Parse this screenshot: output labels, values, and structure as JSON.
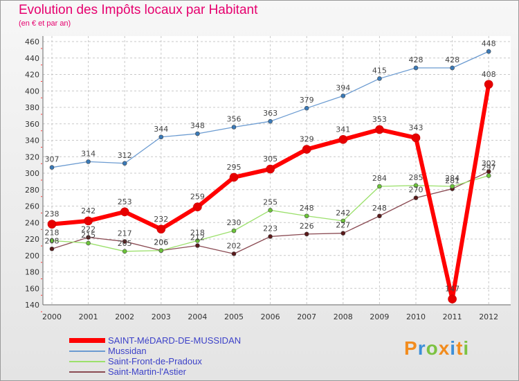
{
  "chart_data": {
    "type": "line",
    "title": "Evolution des Impôts locaux par Habitant",
    "subtitle": "(en € et par an)",
    "xlabel": "",
    "ylabel": "",
    "ylim": [
      140,
      460
    ],
    "yticks": [
      140,
      160,
      180,
      200,
      220,
      240,
      260,
      280,
      300,
      320,
      340,
      360,
      380,
      400,
      420,
      440,
      460
    ],
    "categories": [
      "2000",
      "2001",
      "2002",
      "2003",
      "2004",
      "2005",
      "2006",
      "2007",
      "2008",
      "2009",
      "2010",
      "2011",
      "2012"
    ],
    "legend_position": "bottom-left",
    "series": [
      {
        "name": "SAINT-MéDARD-DE-MUSSIDAN",
        "color": "#ff0000",
        "dot": "#e60000",
        "width": 6,
        "r": 6,
        "values": [
          238,
          242,
          253,
          232,
          259,
          295,
          305,
          329,
          341,
          353,
          343,
          147,
          408
        ]
      },
      {
        "name": "Mussidan",
        "color": "#6b9bd1",
        "dot": "#3a7ab8",
        "width": 1.3,
        "r": 3,
        "values": [
          307,
          314,
          312,
          344,
          348,
          356,
          363,
          379,
          394,
          415,
          428,
          428,
          448
        ]
      },
      {
        "name": "Saint-Front-de-Pradoux",
        "color": "#9be06b",
        "dot": "#6cc43a",
        "width": 1.3,
        "r": 3,
        "values": [
          218,
          215,
          205,
          206,
          218,
          230,
          255,
          248,
          242,
          284,
          285,
          284,
          297
        ]
      },
      {
        "name": "Saint-Martin-l'Astier",
        "color": "#8a4a52",
        "dot": "#5a1a1a",
        "width": 1.3,
        "r": 3,
        "values": [
          208,
          222,
          217,
          206,
          212,
          202,
          223,
          226,
          227,
          248,
          270,
          281,
          302
        ]
      }
    ]
  },
  "brand": {
    "letters": [
      "P",
      "r",
      "o",
      "x",
      "i",
      "t",
      "i"
    ],
    "colors": [
      "#f28c1e",
      "#3c8fd8",
      "#7cc242",
      "#f28c1e",
      "#3c8fd8",
      "#f28c1e",
      "#7cc242"
    ]
  }
}
